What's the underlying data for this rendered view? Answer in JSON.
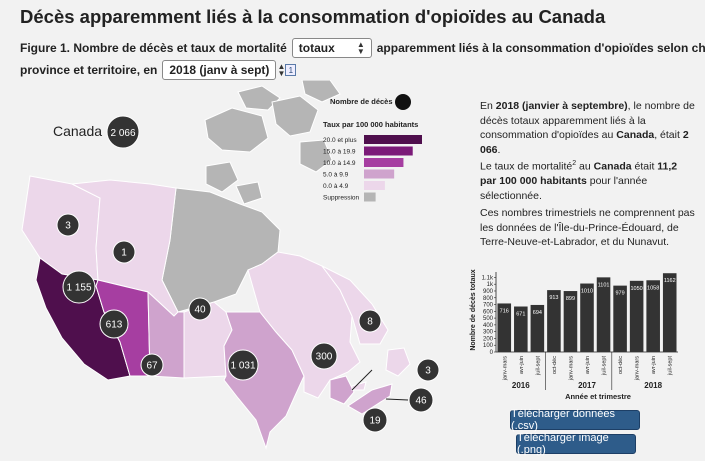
{
  "page_title": "Décès apparemment liés à la consommation d'opioïdes au Canada",
  "figure": {
    "prefix": "Figure 1. Nombre de décès et taux de mortalité",
    "measure_select": "totaux",
    "middle": "apparemment liés à la consommation d'opioïdes selon chaque",
    "line2_prefix": "province et territoire, en",
    "period_select": "2018 (janv à sept)",
    "footnote": "1"
  },
  "map": {
    "canada_label": "Canada",
    "canada_value": "2 066",
    "legend_bubble_label": "Nombre de décès",
    "legend_rate_title": "Taux par 100 000 habitants",
    "legend_items": [
      {
        "label": "20.0 et plus",
        "color": "#4f0f4d",
        "fraction": 1.0
      },
      {
        "label": "15.0 à 19.9",
        "color": "#7b1a78",
        "fraction": 0.84
      },
      {
        "label": "10.0 à 14.9",
        "color": "#a63ea1",
        "fraction": 0.68
      },
      {
        "label": "5.0 à 9.9",
        "color": "#cfa3cd",
        "fraction": 0.52
      },
      {
        "label": "0.0 à 4.9",
        "color": "#ecd7ea",
        "fraction": 0.36
      },
      {
        "label": "Suppression",
        "color": "#b5b5b5",
        "fraction": 0.2
      }
    ],
    "bubbles": [
      {
        "name": "yukon",
        "value": "3"
      },
      {
        "name": "northwest-territories",
        "value": "1"
      },
      {
        "name": "british-columbia",
        "value": "1 155"
      },
      {
        "name": "alberta",
        "value": "613"
      },
      {
        "name": "saskatchewan",
        "value": "67"
      },
      {
        "name": "manitoba",
        "value": "40"
      },
      {
        "name": "ontario",
        "value": "1 031"
      },
      {
        "name": "quebec",
        "value": "300"
      },
      {
        "name": "newfoundland",
        "value": "8"
      },
      {
        "name": "new-brunswick",
        "value": "3"
      },
      {
        "name": "nova-scotia",
        "value": "46"
      },
      {
        "name": "pei",
        "value": "19"
      }
    ]
  },
  "summary": {
    "p1_a": "En",
    "p1_year": "2018 (janvier à septembre)",
    "p1_b": ", le nombre de décès totaux apparemment liés à la consommation d'opioïdes au",
    "p1_region": "Canada",
    "p1_c": ", était",
    "p1_value": "2 066",
    "p1_end": ".",
    "p2_a": "Le taux de mortalité",
    "p2_sup": "2",
    "p2_b": " au",
    "p2_region": "Canada",
    "p2_c": " était",
    "p2_value": "11,2 par 100 000 habitants",
    "p2_d": " pour l'année sélectionnée.",
    "p3": "Ces nombres trimestriels ne comprennent pas les données de l'Île-du-Prince-Édouard, de Terre-Neuve-et-Labrador, et du Nunavut."
  },
  "chart_data": {
    "type": "bar",
    "categories": [
      "janv-mars",
      "avr-juin",
      "juil-sept",
      "oct-déc",
      "janv-mars",
      "avr-juin",
      "juil-sept",
      "oct-déc",
      "janv-mars",
      "avr-juin",
      "juil-sept"
    ],
    "year_labels": [
      "2016",
      "2017",
      "2018"
    ],
    "values": [
      716,
      671,
      694,
      913,
      899,
      1010,
      1101,
      979,
      1050,
      1058,
      1162
    ],
    "value_labels": [
      "716",
      "671",
      "694",
      "913",
      "899",
      "1010",
      "1101",
      "979",
      "1050",
      "1058",
      "1162"
    ],
    "ylabel": "Nombre de décès totaux",
    "xlabel": "Année et trimestre",
    "yticks": [
      "0",
      "100",
      "200",
      "300",
      "400",
      "500",
      "600",
      "700",
      "800",
      "900",
      "1k",
      "1.1k"
    ],
    "ylim": [
      0,
      1180
    ],
    "bar_color": "#333333"
  },
  "buttons": {
    "download_data": "Télécharger données (.csv)",
    "download_image": "Télécharger image (.png)"
  }
}
